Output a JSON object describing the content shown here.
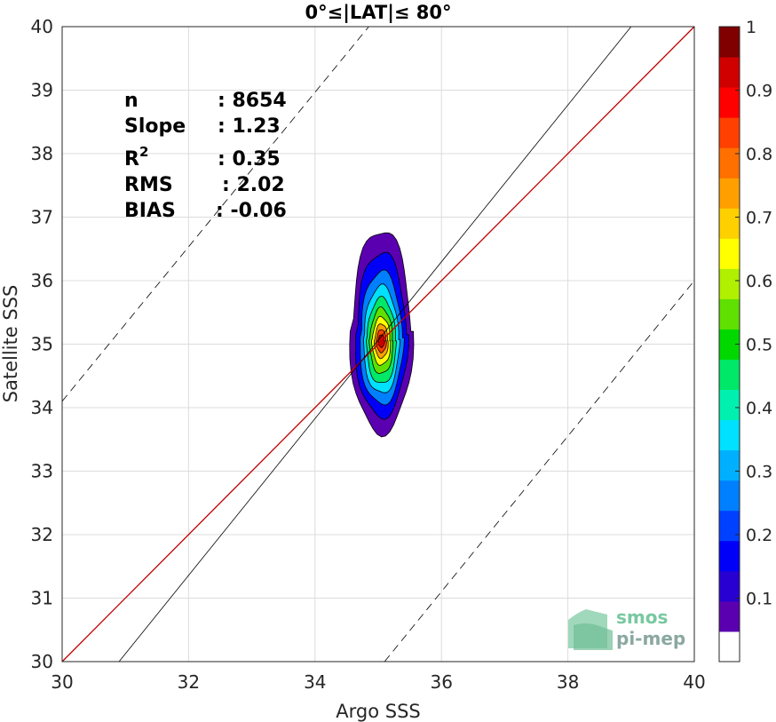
{
  "chart_data": {
    "type": "heatmap",
    "title": "0°≤|LAT|≤ 80°",
    "xlabel": "Argo SSS",
    "ylabel": "Satellite SSS",
    "xlim": [
      30,
      40
    ],
    "ylim": [
      30,
      40
    ],
    "xticks": [
      "30",
      "32",
      "34",
      "36",
      "38",
      "40"
    ],
    "yticks": [
      "30",
      "31",
      "32",
      "33",
      "34",
      "35",
      "36",
      "37",
      "38",
      "39",
      "40"
    ],
    "grid": true,
    "stats": [
      {
        "name": "n",
        "value": ": 8654"
      },
      {
        "name": "Slope",
        "value": ": 1.23"
      },
      {
        "name": "R",
        "sup": "2",
        "value": ": 0.35"
      },
      {
        "name": "RMS",
        "value": ": 2.02"
      },
      {
        "name": "BIAS",
        "value": ": -0.06"
      }
    ],
    "lines": [
      {
        "name": "identity",
        "style": "solid",
        "color": "#c00000",
        "points": [
          [
            30,
            30
          ],
          [
            40,
            40
          ]
        ]
      },
      {
        "name": "regression",
        "style": "solid",
        "color": "#000000",
        "points": [
          [
            30.9,
            30
          ],
          [
            39.0,
            40
          ]
        ]
      },
      {
        "name": "upper-bound",
        "style": "dashed",
        "color": "#000000",
        "points": [
          [
            30,
            34.1
          ],
          [
            34.85,
            40
          ]
        ]
      },
      {
        "name": "lower-bound",
        "style": "dashed",
        "color": "#000000",
        "points": [
          [
            35.1,
            30
          ],
          [
            40,
            36.0
          ]
        ]
      }
    ],
    "density": {
      "center": [
        35.05,
        35.05
      ],
      "levels": [
        {
          "level": 0.05,
          "rx": 0.5,
          "ry": 1.6,
          "cy_offset": 0.15
        },
        {
          "level": 0.15,
          "rx": 0.42,
          "ry": 1.3,
          "cy_offset": 0.1
        },
        {
          "level": 0.25,
          "rx": 0.35,
          "ry": 1.05,
          "cy_offset": 0.05
        },
        {
          "level": 0.35,
          "rx": 0.29,
          "ry": 0.85,
          "cy_offset": 0.02
        },
        {
          "level": 0.45,
          "rx": 0.24,
          "ry": 0.68,
          "cy_offset": 0.0
        },
        {
          "level": 0.55,
          "rx": 0.19,
          "ry": 0.52,
          "cy_offset": 0.0
        },
        {
          "level": 0.65,
          "rx": 0.15,
          "ry": 0.38,
          "cy_offset": 0.0
        },
        {
          "level": 0.75,
          "rx": 0.11,
          "ry": 0.27,
          "cy_offset": 0.0
        },
        {
          "level": 0.85,
          "rx": 0.08,
          "ry": 0.18,
          "cy_offset": 0.0
        },
        {
          "level": 0.95,
          "rx": 0.05,
          "ry": 0.1,
          "cy_offset": 0.0
        }
      ]
    },
    "colorbar": {
      "range": [
        0,
        1
      ],
      "ticks": [
        "0.1",
        "0.2",
        "0.3",
        "0.4",
        "0.5",
        "0.6",
        "0.7",
        "0.8",
        "0.9",
        "1"
      ],
      "tick_values": [
        0.1,
        0.2,
        0.3,
        0.4,
        0.5,
        0.6,
        0.7,
        0.8,
        0.9,
        1.0
      ],
      "colors": [
        "#ffffff",
        "#5a00b0",
        "#2800d2",
        "#0000f8",
        "#0040ff",
        "#0080ff",
        "#00b0ff",
        "#00e0ff",
        "#00f0b0",
        "#00e868",
        "#00d800",
        "#60e000",
        "#b0f000",
        "#ffff00",
        "#ffd000",
        "#ffa000",
        "#ff7000",
        "#ff4000",
        "#ff0000",
        "#d00000",
        "#800000"
      ]
    }
  },
  "logo": {
    "line1": "smos",
    "line2": "pi-mep"
  }
}
